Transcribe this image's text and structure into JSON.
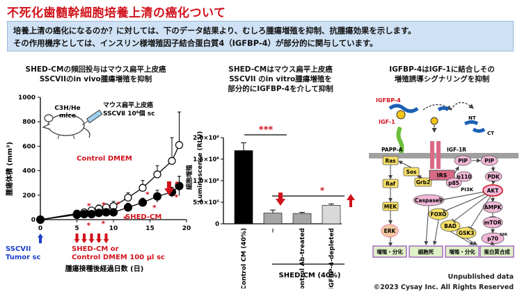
{
  "title": "不死化歯髄幹細胞培養上清の癌化ついて",
  "summary": {
    "line1": "培養上清の癌化になるのか？に対しては、下のデータ結果より、むしろ腫瘍増殖を抑制、抗腫瘍効果を示します。",
    "line2": "その作用機序としては、インスリン様増殖因子結合蛋白質4（IGFBP-4）が部分的に関与しています。"
  },
  "panel1": {
    "heading1": "SHED-CMの頻回投与はマウス扁平上皮癌",
    "heading2": "SSCVIIのin vivo腫瘍増殖を抑制",
    "mouse_label1": "C3H/He",
    "mouse_label2": "mice",
    "injection_label1": "マウス扁平上皮癌",
    "injection_label2": "SSCVⅡ 10⁶個 sc",
    "ylabel": "腫瘍体積 (mm³)",
    "xlabel": "腫瘍接種後経過日数 (日)",
    "control_label": "Control DMEM",
    "shed_label": "SHED-CM",
    "tumor_label1": "SSCVII",
    "tumor_label2": "Tumor sc",
    "treat_label1": "SHED-CM or",
    "treat_label2": "Control DMEM 100 μl sc"
  },
  "panel2": {
    "heading1": "SHED-CMはマウス扁平上皮癌",
    "heading2": "SSCVII のin vitro腫瘍増殖を",
    "heading3": "部分的にIGFBP-4を介して抑制",
    "ylabel": "Luminescence (RLU)",
    "ylabel_jp": "細胞増殖",
    "group_label": "SHED-CM (40%)",
    "sig1": "***",
    "sig2": "*"
  },
  "panel3": {
    "heading1": "IGFBP-4はIGF-1に結合しその",
    "heading2": "増殖誘導シグナリングを抑制",
    "nodes": {
      "igfbp4": "IGFBP-4",
      "igf1": "IGF-1",
      "nt": "NT",
      "ct": "CT",
      "papp": "PAPP-A",
      "igf1r": "IGF-1R",
      "ras": "Ras",
      "sos": "Sos",
      "grb2": "Grb2",
      "irs": "IRS",
      "pip2": "PIP",
      "pip3": "PIP",
      "pip2_sub": "2",
      "pip3_sub": "3",
      "p110": "p110",
      "p85": "p85",
      "pi3k": "PI3K",
      "pdk": "PDK",
      "raf": "Raf",
      "akt": "AKT",
      "casp9": "Caspase9",
      "mek": "MEK",
      "foxo": "FOXO",
      "ampk": "AMPK",
      "mtor": "mTOR",
      "bad": "BAD",
      "erk": "ERK",
      "gsk3": "GSK3",
      "p70": "p70",
      "p70_sup": "S6K"
    },
    "outcomes": [
      "増殖・分化",
      "細胞死",
      "増殖・分化",
      "蛋白質合成"
    ]
  },
  "footer": {
    "unpublished": "Unpublished data",
    "copyright": "©2023 Cysay Inc. All Rights Reserved"
  },
  "colors": {
    "title_red": "#d1121b",
    "summary_bg": "#cfe1f4",
    "yellow_node": "#f7e066",
    "pink_node": "#f2b8d8",
    "outcome_bg": "#dff0c8",
    "outcome_border": "#a060c0"
  },
  "chart_data": [
    {
      "type": "line",
      "title": "SHED-CMの頻回投与はマウス扁平上皮癌 SSCVIIのin vivo腫瘍増殖を抑制",
      "xlabel": "腫瘍接種後経過日数 (日)",
      "ylabel": "腫瘍体積 (mm³)",
      "xlim": [
        0,
        20
      ],
      "ylim": [
        0,
        1000
      ],
      "xticks": [
        0,
        5,
        10,
        15,
        20
      ],
      "yticks": [
        0,
        200,
        400,
        600,
        800,
        1000
      ],
      "series": [
        {
          "name": "Control DMEM",
          "marker": "open-circle",
          "x": [
            0,
            5,
            6,
            7,
            8,
            9,
            10,
            12,
            14,
            16,
            18,
            19
          ],
          "y": [
            0,
            50,
            60,
            75,
            90,
            100,
            110,
            180,
            260,
            370,
            480,
            610
          ],
          "err": [
            0,
            15,
            20,
            20,
            30,
            25,
            40,
            40,
            60,
            70,
            190,
            270
          ]
        },
        {
          "name": "SHED-CM",
          "marker": "filled-circle",
          "x": [
            0,
            5,
            6,
            7,
            8,
            9,
            10,
            12,
            14,
            16,
            18,
            19
          ],
          "y": [
            0,
            40,
            45,
            45,
            55,
            60,
            60,
            100,
            140,
            190,
            225,
            275
          ],
          "err": [
            0,
            10,
            15,
            10,
            15,
            15,
            15,
            35,
            35,
            50,
            40,
            80
          ]
        }
      ],
      "stars_at_x": [
        6,
        7,
        8,
        9,
        10,
        12,
        14,
        16,
        18,
        19
      ],
      "treatment_days": [
        5,
        6,
        7,
        8,
        9
      ],
      "tumor_day": 0
    },
    {
      "type": "bar",
      "ylabel": "Luminescence (RLU)",
      "ylim": [
        0,
        2000000
      ],
      "yticks": [
        0,
        500000,
        1000000,
        1500000,
        2000000
      ],
      "ytick_labels": [
        "0",
        "5.0×10⁵",
        "1.0×10⁶",
        "1.5×10⁶",
        "2.0×10⁶"
      ],
      "categories": [
        "Control CM (40%)",
        "−",
        "Control Ab-treated",
        "IGFBP-4-depleted"
      ],
      "values": [
        1700000,
        250000,
        240000,
        430000
      ],
      "errors": [
        180000,
        70000,
        25000,
        30000
      ],
      "colors": [
        "#000000",
        "#a6a6a6",
        "#a6a6a6",
        "#d9d9d9"
      ],
      "group": "SHED-CM (40%)"
    }
  ]
}
